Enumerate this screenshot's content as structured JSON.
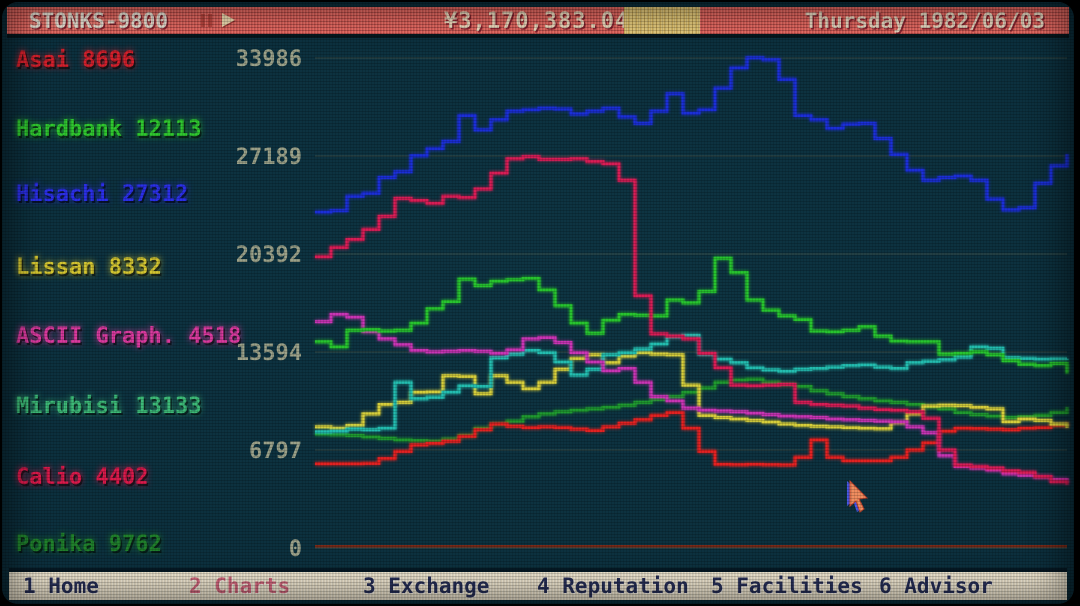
{
  "topbar": {
    "title": "STONKS-9800",
    "balance": "¥3,170,383.04",
    "date": "Thursday 1982/06/03"
  },
  "companies": [
    {
      "name": "Asai",
      "value": "8696",
      "label_color": "#d2202c"
    },
    {
      "name": "Hardbank",
      "value": "12113",
      "label_color": "#2fc72f"
    },
    {
      "name": "Hisachi",
      "value": "27312",
      "label_color": "#2b2fe8"
    },
    {
      "name": "Lissan",
      "value": "8332",
      "label_color": "#d3c531"
    },
    {
      "name": "ASCII Graph.",
      "value": "4518",
      "label_color": "#d93a9e"
    },
    {
      "name": "Mirubisi",
      "value": "13133",
      "label_color": "#3dba78"
    },
    {
      "name": "Calio",
      "value": "4402",
      "label_color": "#da1a4b"
    },
    {
      "name": "Ponika",
      "value": "9762",
      "label_color": "#20802c"
    }
  ],
  "nav": [
    {
      "label": "1 Home",
      "color": "#28305a",
      "active": false
    },
    {
      "label": "2 Charts",
      "color": "#d4697f",
      "active": true
    },
    {
      "label": "3 Exchange",
      "color": "#28305a",
      "active": false
    },
    {
      "label": "4 Reputation",
      "color": "#28305a",
      "active": false
    },
    {
      "label": "5 Facilities",
      "color": "#28305a",
      "active": false
    },
    {
      "label": "6 Advisor",
      "color": "#28305a",
      "active": false
    }
  ],
  "chart_data": {
    "type": "line",
    "title": "",
    "xlabel": "",
    "ylabel": "",
    "grid": "horizontal",
    "ylim": [
      0,
      35500
    ],
    "ytick_values": [
      33986,
      27189,
      20392,
      13594,
      6797,
      0
    ],
    "ytick_labels": [
      "33986",
      "27189",
      "20392",
      "13594",
      "6797",
      "0"
    ],
    "tick_color": "#9ba189",
    "grid_color": "#5a614f",
    "baseline_value": 120,
    "baseline_color": "#7a2a18",
    "series": [
      {
        "name": "Ponika",
        "color": "#1f9a30",
        "values": [
          7900,
          7850,
          7800,
          7700,
          7600,
          7500,
          7450,
          7400,
          7550,
          7800,
          8300,
          8600,
          8800,
          9100,
          9300,
          9450,
          9550,
          9650,
          9750,
          9900,
          10100,
          10300,
          10500,
          10800,
          11100,
          11500,
          11650,
          11700,
          11500,
          11350,
          11200,
          10900,
          10700,
          10500,
          10350,
          10200,
          10100,
          9950,
          9800,
          9650,
          9400,
          9250,
          9150,
          9050,
          9100,
          9200,
          9400,
          9762
        ]
      },
      {
        "name": "Asai",
        "color": "#e32222",
        "values": [
          5850,
          5850,
          5850,
          5870,
          6200,
          6700,
          7150,
          7250,
          7400,
          7750,
          8200,
          8600,
          8450,
          8350,
          8400,
          8350,
          8250,
          8150,
          8400,
          8650,
          8900,
          9200,
          9400,
          8300,
          6700,
          5800,
          5780,
          5800,
          5770,
          5760,
          6300,
          7500,
          6300,
          6050,
          6050,
          6050,
          6300,
          6800,
          7300,
          8100,
          8300,
          8280,
          8250,
          8200,
          8300,
          8350,
          8500,
          8696
        ]
      },
      {
        "name": "Lissan",
        "color": "#d6ce3c",
        "values": [
          8400,
          8300,
          8500,
          9300,
          9950,
          10100,
          10800,
          10830,
          11950,
          11900,
          10700,
          11950,
          11500,
          11050,
          11500,
          12400,
          13150,
          13400,
          12850,
          13300,
          13550,
          13450,
          13400,
          11300,
          9200,
          9050,
          8950,
          8850,
          8740,
          8600,
          8500,
          8450,
          8400,
          8350,
          8300,
          8270,
          8700,
          9300,
          9850,
          9900,
          9880,
          9750,
          9650,
          8750,
          8950,
          8850,
          8600,
          8332
        ]
      },
      {
        "name": "Mirubisi",
        "color": "#23bdb0",
        "values": [
          8050,
          8100,
          8250,
          8200,
          8300,
          11500,
          10350,
          10450,
          10800,
          11250,
          11200,
          13200,
          13450,
          13700,
          13550,
          12900,
          12000,
          12400,
          13400,
          13550,
          13800,
          14150,
          14650,
          14750,
          13450,
          13100,
          12850,
          12500,
          12350,
          12250,
          12400,
          12450,
          12550,
          12650,
          12700,
          12550,
          12450,
          12850,
          12950,
          13050,
          13250,
          13950,
          13850,
          13200,
          13150,
          13100,
          13120,
          13133
        ]
      },
      {
        "name": "ASCII Graph.",
        "color": "#c935b5",
        "values": [
          15700,
          16200,
          16000,
          15000,
          14500,
          14100,
          13700,
          13600,
          13650,
          13700,
          13650,
          13500,
          13750,
          14500,
          14600,
          14250,
          13550,
          12900,
          12300,
          12450,
          11500,
          10500,
          10200,
          9700,
          9550,
          9500,
          9450,
          9350,
          9250,
          9150,
          9100,
          9050,
          8950,
          8900,
          8850,
          8800,
          8750,
          8400,
          8000,
          6400,
          5650,
          5550,
          5400,
          5150,
          5050,
          4930,
          4750,
          4518
        ]
      },
      {
        "name": "Hardbank",
        "color": "#27c42f",
        "values": [
          14300,
          13950,
          15100,
          15150,
          15050,
          15100,
          15600,
          16600,
          17100,
          18650,
          18200,
          18500,
          18600,
          18700,
          17900,
          16800,
          15600,
          14900,
          15800,
          16200,
          16150,
          16100,
          17200,
          17000,
          17800,
          20100,
          19100,
          17200,
          16500,
          16100,
          15850,
          15050,
          15000,
          15100,
          15350,
          14700,
          14350,
          14300,
          14300,
          13450,
          13500,
          13600,
          13400,
          13000,
          12750,
          12650,
          12800,
          12113
        ]
      },
      {
        "name": "Calio",
        "color": "#d81d56",
        "values": [
          20200,
          20850,
          21400,
          22100,
          23000,
          24250,
          24100,
          23900,
          24400,
          24300,
          24900,
          26000,
          27000,
          27150,
          26950,
          26950,
          27000,
          26800,
          26650,
          25500,
          17500,
          14850,
          14700,
          14500,
          13500,
          12500,
          11300,
          11250,
          11300,
          11350,
          10100,
          9950,
          9900,
          9850,
          9700,
          9600,
          9550,
          9450,
          9000,
          6800,
          5750,
          5650,
          5550,
          5350,
          5250,
          4950,
          4600,
          4402
        ]
      },
      {
        "name": "Hisachi",
        "color": "#1b2fd8",
        "values": [
          23300,
          23400,
          24400,
          24600,
          25700,
          26100,
          27200,
          27700,
          28200,
          30000,
          29000,
          29700,
          30300,
          30400,
          30500,
          30450,
          30100,
          30300,
          30500,
          29900,
          29450,
          30300,
          31500,
          30150,
          30400,
          31900,
          33300,
          34000,
          33870,
          32500,
          30000,
          29700,
          29100,
          29400,
          29450,
          28400,
          27300,
          26200,
          25500,
          25700,
          25800,
          25500,
          24200,
          23450,
          23600,
          25300,
          26500,
          27312
        ]
      }
    ]
  }
}
